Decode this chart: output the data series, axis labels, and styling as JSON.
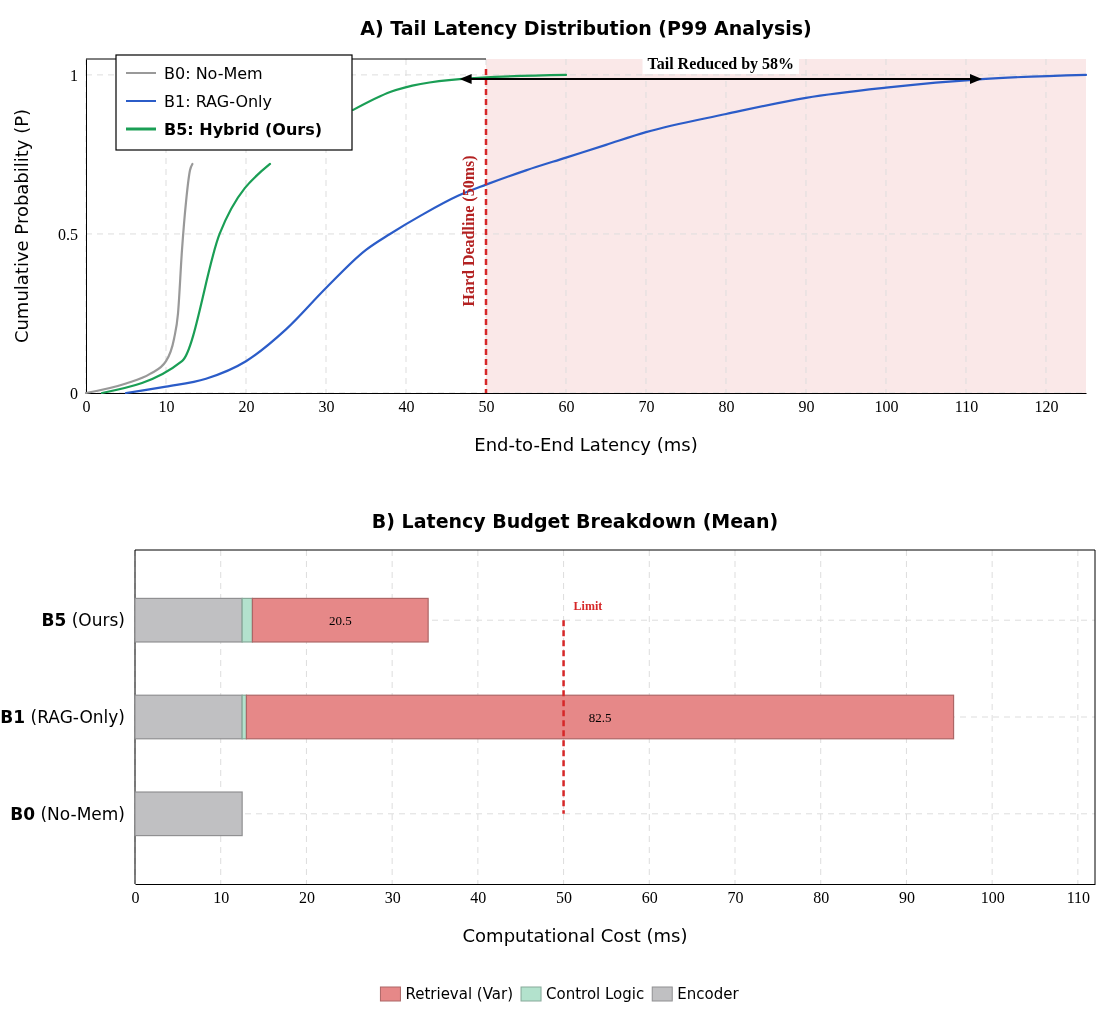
{
  "chart_data": [
    {
      "type": "line",
      "title": "A) Tail Latency Distribution (P99 Analysis)",
      "xlabel": "End-to-End Latency (ms)",
      "ylabel": "Cumulative Probability (P)",
      "xlim": [
        0,
        125
      ],
      "ylim": [
        0,
        1.05
      ],
      "xticks": [
        0,
        10,
        20,
        30,
        40,
        50,
        60,
        70,
        80,
        90,
        100,
        110,
        120
      ],
      "yticks": [
        0,
        0.5,
        1
      ],
      "grid": true,
      "legend": "top left",
      "line_style": "solid",
      "marker": "none",
      "series": [
        {
          "name": "B0: No-Mem",
          "color": "#999999",
          "x": [
            0,
            5,
            8,
            10,
            11,
            11.5,
            12,
            12.5,
            13,
            13.3
          ],
          "values": [
            0,
            0.03,
            0.06,
            0.1,
            0.17,
            0.25,
            0.45,
            0.6,
            0.7,
            0.72
          ]
        },
        {
          "name": "B1: RAG-Only",
          "color": "#2b5cc8",
          "x": [
            5,
            10,
            15,
            20,
            25,
            30,
            35,
            38,
            42,
            46.5,
            50,
            55,
            60,
            65,
            70,
            80,
            90,
            100,
            112,
            125
          ],
          "values": [
            0,
            0.02,
            0.045,
            0.1,
            0.2,
            0.33,
            0.45,
            0.5,
            0.56,
            0.62,
            0.655,
            0.7,
            0.74,
            0.78,
            0.82,
            0.877,
            0.928,
            0.96,
            0.987,
            1
          ]
        },
        {
          "name": "B5: Hybrid (Ours)",
          "color": "#1a9e55",
          "x": [
            2,
            12,
            16.7,
            23,
            28,
            33.4,
            38.1,
            46.7,
            60
          ],
          "values": [
            0,
            0.1,
            0.5,
            0.72,
            null,
            0.89,
            0.947,
            0.987,
            1
          ]
        }
      ],
      "ref_lines": [
        {
          "axis": "x",
          "value": 50,
          "label": "Hard Deadline (50ms)",
          "color": "#d62728",
          "line_style": "dashed"
        }
      ],
      "bands": [
        {
          "axis": "x",
          "from": 50,
          "to": 125,
          "color": "#fae8e8"
        }
      ],
      "annotations": [
        "Tail Reduced by 58%"
      ]
    },
    {
      "type": "bar",
      "orientation": "horizontal",
      "stacked": true,
      "title": "B) Latency Budget Breakdown (Mean)",
      "xlabel": "Computational Cost (ms)",
      "categories": [
        "B5 (Ours)",
        "B1 (RAG-Only)",
        "B0 (No-Mem)"
      ],
      "xlim": [
        0,
        112
      ],
      "xticks": [
        0,
        10,
        20,
        30,
        40,
        50,
        60,
        70,
        80,
        90,
        100,
        110
      ],
      "grid": true,
      "legend": "bottom",
      "series": [
        {
          "name": "Encoder",
          "color": "#c0c0c2",
          "values": [
            12.5,
            12.5,
            12.5
          ]
        },
        {
          "name": "Control Logic",
          "color": "#b3e2cd",
          "values": [
            1.2,
            0.5,
            0
          ]
        },
        {
          "name": "Retrieval (Var)",
          "color": "#e68888",
          "values": [
            20.5,
            82.5,
            0
          ],
          "value_labels": [
            "20.5",
            "82.5",
            null
          ]
        }
      ],
      "ref_lines": [
        {
          "axis": "x",
          "value": 50,
          "label": "Limit",
          "color": "#d62728",
          "line_style": "dashed"
        }
      ]
    }
  ]
}
